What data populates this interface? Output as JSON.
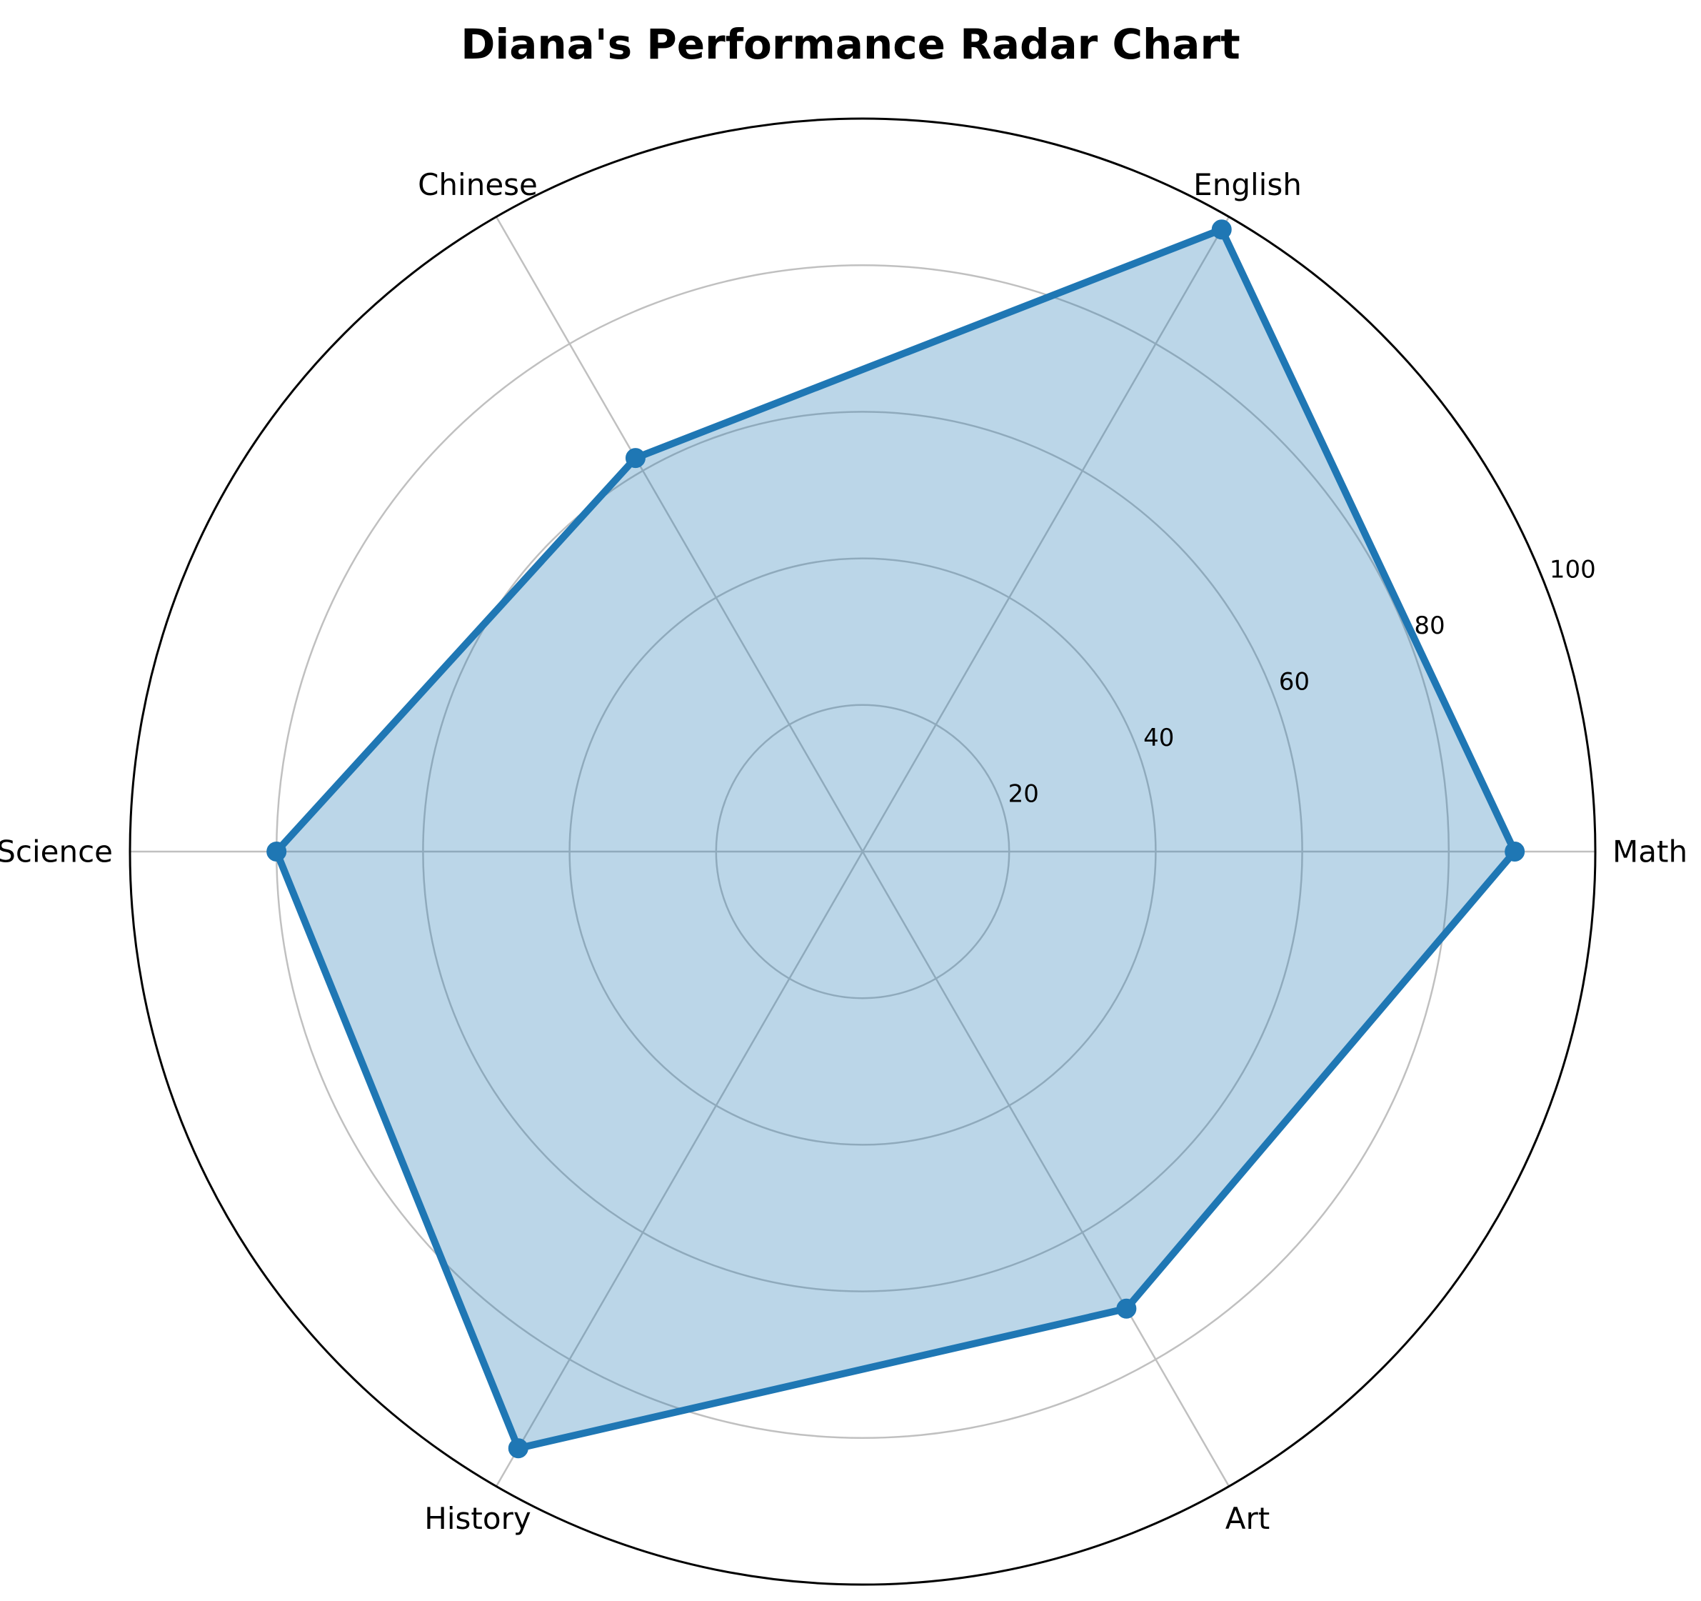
{
  "chart_data": {
    "type": "radar",
    "title": "Diana's Performance Radar Chart",
    "categories": [
      "Math",
      "English",
      "Chinese",
      "Science",
      "History",
      "Art"
    ],
    "values": [
      89,
      98,
      62,
      80,
      94,
      72
    ],
    "rlim": [
      0,
      100
    ],
    "rticks": [
      20,
      40,
      60,
      80,
      100
    ],
    "rtick_labels": [
      "20",
      "40",
      "60",
      "80",
      "100"
    ],
    "grid": true,
    "colors": {
      "line": "#1f77b4",
      "fill": "#1f77b4",
      "grid": "#c0c0c0",
      "outer_ring": "#000000"
    }
  }
}
